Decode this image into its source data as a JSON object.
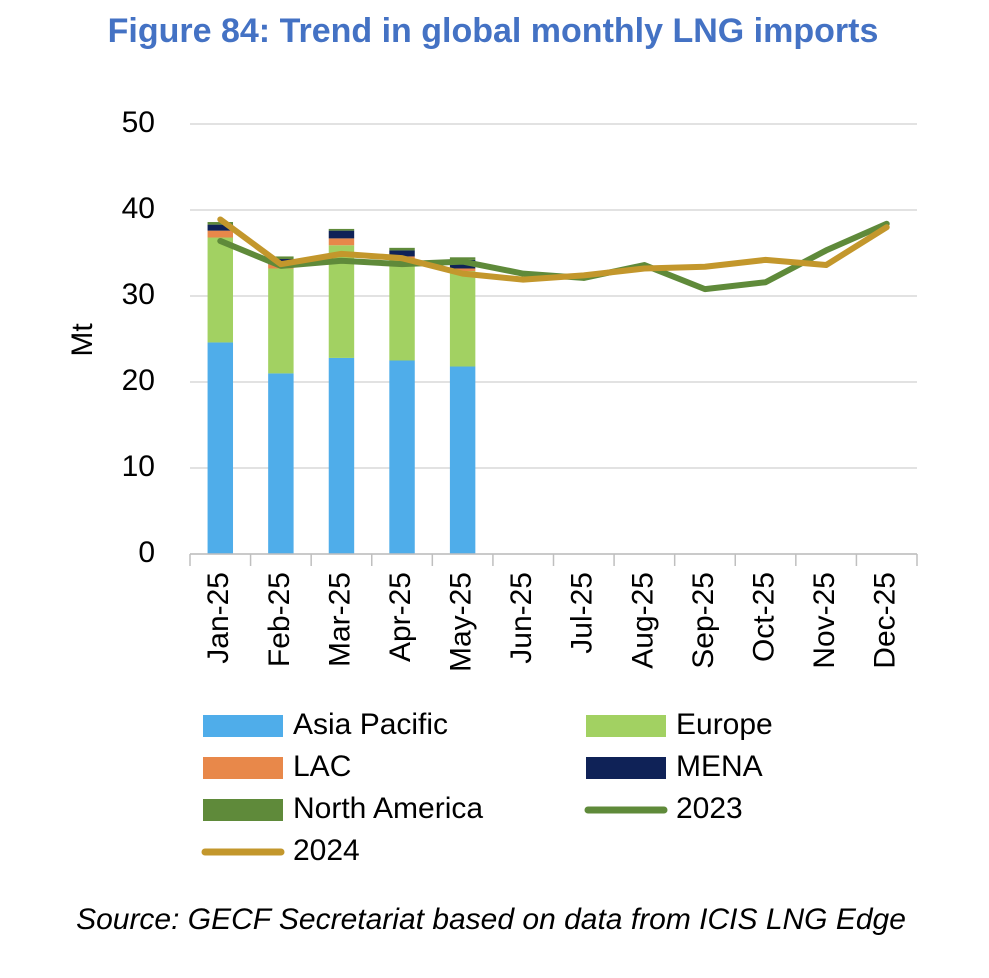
{
  "chart_data": {
    "type": "bar",
    "stacked": true,
    "title": "Figure 84: Trend in global monthly LNG imports",
    "y_label": "Mt",
    "source": "Source: GECF Secretariat based on data from ICIS LNG Edge",
    "categories": [
      "Jan-25",
      "Feb-25",
      "Mar-25",
      "Apr-25",
      "May-25",
      "Jun-25",
      "Jul-25",
      "Aug-25",
      "Sep-25",
      "Oct-25",
      "Nov-25",
      "Dec-25"
    ],
    "ylim": [
      0,
      50
    ],
    "yticks": [
      0,
      10,
      20,
      30,
      40,
      50
    ],
    "grid": true,
    "series": [
      {
        "name": "Asia Pacific",
        "type": "bar",
        "color": "#4fadea",
        "values": [
          24.6,
          21.0,
          22.8,
          22.5,
          21.8,
          null,
          null,
          null,
          null,
          null,
          null,
          null
        ]
      },
      {
        "name": "Europe",
        "type": "bar",
        "color": "#a2d162",
        "values": [
          12.2,
          12.2,
          13.1,
          11.8,
          11.1,
          null,
          null,
          null,
          null,
          null,
          null,
          null
        ]
      },
      {
        "name": "LAC",
        "type": "bar",
        "color": "#e8884a",
        "values": [
          0.8,
          0.5,
          0.8,
          0.3,
          0.3,
          null,
          null,
          null,
          null,
          null,
          null,
          null
        ]
      },
      {
        "name": "MENA",
        "type": "bar",
        "color": "#0f2257",
        "values": [
          0.7,
          0.6,
          0.9,
          0.7,
          1.0,
          null,
          null,
          null,
          null,
          null,
          null,
          null
        ]
      },
      {
        "name": "North America",
        "type": "bar",
        "color": "#5f8a3a",
        "values": [
          0.3,
          0.3,
          0.2,
          0.3,
          0.3,
          null,
          null,
          null,
          null,
          null,
          null,
          null
        ]
      },
      {
        "name": "2023",
        "type": "line",
        "color": "#5f8a3a",
        "values": [
          36.4,
          33.5,
          34.1,
          33.7,
          34.0,
          32.6,
          32.1,
          33.6,
          30.8,
          31.6,
          35.3,
          38.4
        ]
      },
      {
        "name": "2024",
        "type": "line",
        "color": "#c3972c",
        "values": [
          38.9,
          33.7,
          34.9,
          34.4,
          32.6,
          31.9,
          32.4,
          33.2,
          33.4,
          34.2,
          33.6,
          38.0
        ]
      }
    ]
  }
}
